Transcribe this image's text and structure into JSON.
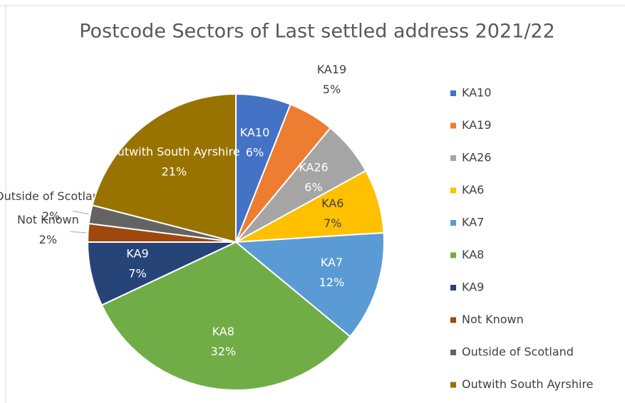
{
  "chart_data": {
    "type": "pie",
    "title": "Postcode Sectors of Last settled address 2021/22",
    "categories": [
      "KA10",
      "KA19",
      "KA26",
      "KA6",
      "KA7",
      "KA8",
      "KA9",
      "Not Known",
      "Outside of Scotland",
      "Outwith South Ayrshire"
    ],
    "values": [
      6,
      5,
      6,
      7,
      12,
      32,
      7,
      2,
      2,
      21
    ],
    "value_labels": [
      "6%",
      "5%",
      "6%",
      "7%",
      "12%",
      "32%",
      "7%",
      "2%",
      "2%",
      "21%"
    ],
    "colors": [
      "#4472c4",
      "#ed7d31",
      "#a5a5a5",
      "#ffc000",
      "#5b9bd5",
      "#70ad47",
      "#264478",
      "#9e480e",
      "#636363",
      "#997300"
    ],
    "legend": "right"
  }
}
